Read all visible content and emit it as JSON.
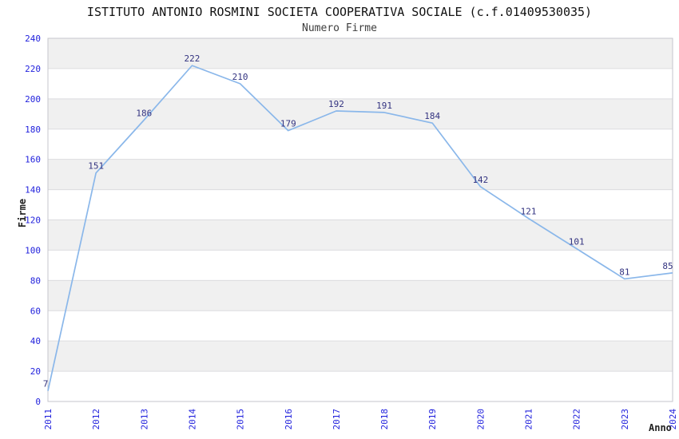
{
  "chart_data": {
    "type": "line",
    "title": "ISTITUTO ANTONIO ROSMINI SOCIETA COOPERATIVA SOCIALE (c.f.01409530035)",
    "subtitle": "Numero Firme",
    "xlabel": "Anno",
    "ylabel": "Firme",
    "categories": [
      "2011",
      "2012",
      "2013",
      "2014",
      "2015",
      "2016",
      "2017",
      "2018",
      "2019",
      "2020",
      "2021",
      "2022",
      "2023",
      "2024"
    ],
    "series": [
      {
        "name": "Numero Firme",
        "values": [
          7,
          151,
          186,
          222,
          210,
          179,
          192,
          191,
          184,
          142,
          121,
          101,
          81,
          85
        ]
      }
    ],
    "ylim": [
      0,
      240
    ],
    "ytick_step": 20,
    "yticks": [
      0,
      20,
      40,
      60,
      80,
      100,
      120,
      140,
      160,
      180,
      200,
      220,
      240
    ],
    "xtick_rotation_degrees": -90,
    "grid": "horizontal gridlines with alternating shaded bands",
    "legend": "none",
    "markers": "none",
    "data_labels": "above each point",
    "colors": {
      "line": "#8ab7ea",
      "tick_label": "#2222dd",
      "value_label": "#333380",
      "band": "#f0f0f0",
      "band_alt": "#ffffff",
      "gridline": "#dcdcdf",
      "plot_border": "#c6c6cc",
      "title": "#111111",
      "subtitle": "#3d3d3d",
      "axis_title": "#222222",
      "background": "#ffffff"
    }
  }
}
